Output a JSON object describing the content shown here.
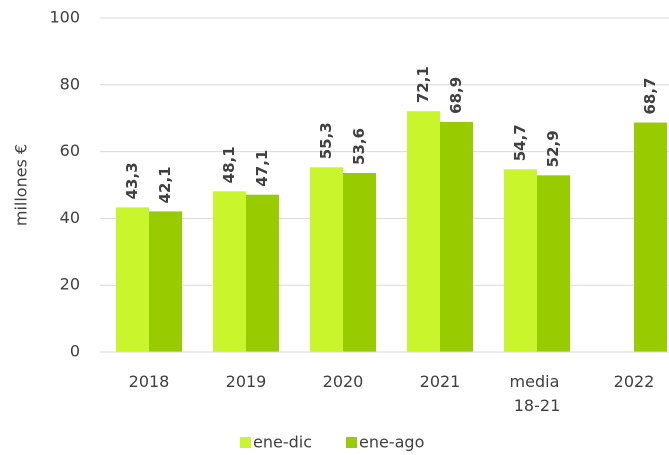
{
  "chart_data": {
    "type": "bar",
    "y_label": "millones €",
    "categories": [
      "2018",
      "2019",
      "2020",
      "2021",
      "media 18-21",
      "2022"
    ],
    "series": [
      {
        "name": "ene-dic",
        "color": "#c8f52c",
        "values": [
          43.3,
          48.1,
          55.3,
          72.1,
          54.7,
          null
        ],
        "value_labels": [
          "43,3",
          "48,1",
          "55,3",
          "72,1",
          "54,7",
          null
        ]
      },
      {
        "name": "ene-ago",
        "color": "#99cc00",
        "values": [
          42.1,
          47.1,
          53.6,
          68.9,
          52.9,
          68.7
        ],
        "value_labels": [
          "42,1",
          "47,1",
          "53,6",
          "68,9",
          "52,9",
          "68,7"
        ]
      }
    ],
    "ylim": [
      0,
      100
    ],
    "yticks": [
      0,
      20,
      40,
      60,
      80,
      100
    ],
    "grid": true,
    "legend": "bottom"
  }
}
